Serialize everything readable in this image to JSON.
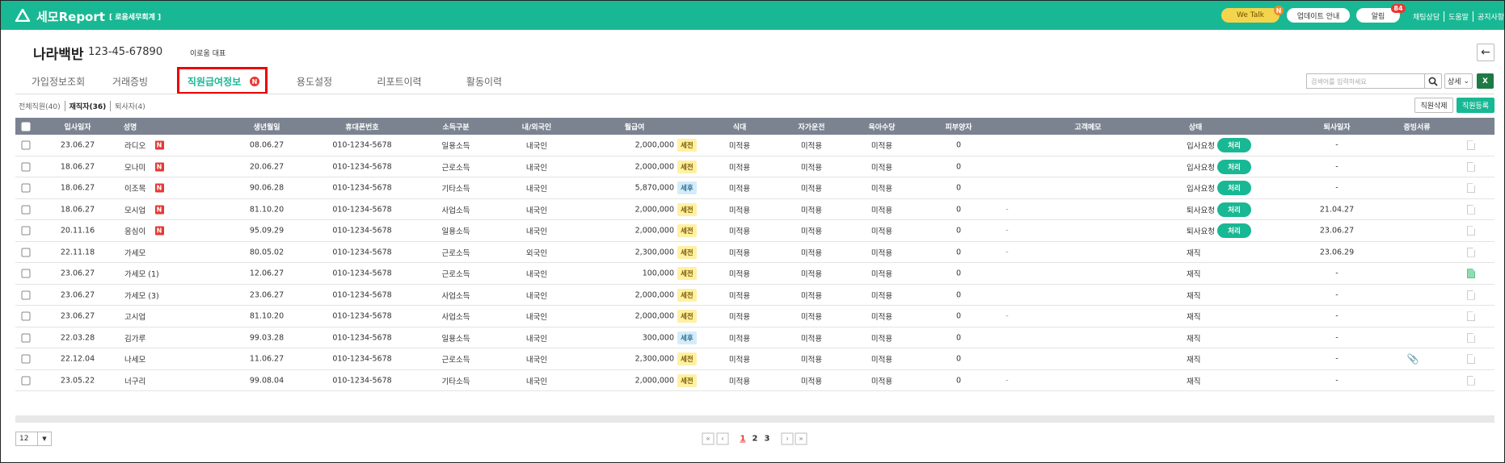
{
  "header": {
    "logo": "세모Report",
    "office": "[ 로움세무회계 ]",
    "wetalk": "We Talk",
    "wetalk_badge": "N",
    "update": "업데이트 안내",
    "alarm": "알림",
    "alarm_badge": "84",
    "links": [
      "채팅상담",
      "도움말",
      "공지사항"
    ]
  },
  "company": {
    "name": "나라백반",
    "biz_no": "123-45-67890",
    "rep": "이로움 대표"
  },
  "tabs": {
    "items": [
      "가입정보조회",
      "거래증빙",
      "직원급여정보",
      "용도설정",
      "리포트이력",
      "활동이력"
    ],
    "active": 2,
    "active_badge": "N"
  },
  "search": {
    "placeholder": "검색어를 입력하세요",
    "detail": "상세"
  },
  "filters": {
    "items": [
      "전체직원(40)",
      "재직자(36)",
      "퇴사자(4)"
    ],
    "active": 1
  },
  "buttons": {
    "delete": "직원삭제",
    "add": "직원등록"
  },
  "table": {
    "columns": [
      "입사일자",
      "성명",
      "생년월일",
      "휴대폰번호",
      "소득구분",
      "내/외국인",
      "월급여",
      "식대",
      "자가운전",
      "육아수당",
      "피부양자",
      "고객메모",
      "상태",
      "퇴사일자",
      "증빙서류"
    ],
    "rows": [
      {
        "date": "23.06.27",
        "name": "라디오",
        "badge": "N",
        "birth": "08.06.27",
        "phone": "010-1234-5678",
        "income": "일용소득",
        "nation": "내국인",
        "salary": "2,000,000",
        "tax": "세전",
        "meal": "미적용",
        "car": "미적용",
        "child": "미적용",
        "dependents": 0,
        "status": "입사요청",
        "action": "처리",
        "leave": "-"
      },
      {
        "date": "18.06.27",
        "name": "모나미",
        "badge": "N",
        "birth": "20.06.27",
        "phone": "010-1234-5678",
        "income": "근로소득",
        "nation": "내국인",
        "salary": "2,000,000",
        "tax": "세전",
        "meal": "미적용",
        "car": "미적용",
        "child": "미적용",
        "dependents": 0,
        "status": "입사요청",
        "action": "처리",
        "leave": "-"
      },
      {
        "date": "18.06.27",
        "name": "이조목",
        "badge": "N",
        "birth": "90.06.28",
        "phone": "010-1234-5678",
        "income": "기타소득",
        "nation": "내국인",
        "salary": "5,870,000",
        "tax": "세후",
        "meal": "미적용",
        "car": "미적용",
        "child": "미적용",
        "dependents": 0,
        "status": "입사요청",
        "action": "처리",
        "leave": "-"
      },
      {
        "date": "18.06.27",
        "name": "모시업",
        "badge": "N",
        "birth": "81.10.20",
        "phone": "010-1234-5678",
        "income": "사업소득",
        "nation": "내국인",
        "salary": "2,000,000",
        "tax": "세전",
        "meal": "미적용",
        "car": "미적용",
        "child": "미적용",
        "dependents": 0,
        "memo": "-",
        "status": "퇴사요청",
        "action": "처리",
        "leave": "21.04.27"
      },
      {
        "date": "20.11.16",
        "name": "응심이",
        "badge": "N",
        "birth": "95.09.29",
        "phone": "010-1234-5678",
        "income": "일용소득",
        "nation": "내국인",
        "salary": "2,000,000",
        "tax": "세전",
        "meal": "미적용",
        "car": "미적용",
        "child": "미적용",
        "dependents": 0,
        "memo": "-",
        "status": "퇴사요청",
        "action": "처리",
        "leave": "23.06.27"
      },
      {
        "date": "22.11.18",
        "name": "가세모",
        "birth": "80.05.02",
        "phone": "010-1234-5678",
        "income": "근로소득",
        "nation": "외국인",
        "salary": "2,300,000",
        "tax": "세전",
        "meal": "미적용",
        "car": "미적용",
        "child": "미적용",
        "dependents": 0,
        "memo": "-",
        "status": "재직",
        "leave": "23.06.29"
      },
      {
        "date": "23.06.27",
        "name": "가세모 (1)",
        "birth": "12.06.27",
        "phone": "010-1234-5678",
        "income": "근로소득",
        "nation": "내국인",
        "salary": "100,000",
        "tax": "세전",
        "meal": "미적용",
        "car": "미적용",
        "child": "미적용",
        "dependents": 0,
        "status": "재직",
        "leave": "-",
        "doc_uploaded": true
      },
      {
        "date": "23.06.27",
        "name": "가세모 (3)",
        "birth": "23.06.27",
        "phone": "010-1234-5678",
        "income": "사업소득",
        "nation": "내국인",
        "salary": "2,000,000",
        "tax": "세전",
        "meal": "미적용",
        "car": "미적용",
        "child": "미적용",
        "dependents": 0,
        "status": "재직",
        "leave": "-"
      },
      {
        "date": "23.06.27",
        "name": "고시업",
        "birth": "81.10.20",
        "phone": "010-1234-5678",
        "income": "사업소득",
        "nation": "내국인",
        "salary": "2,000,000",
        "tax": "세전",
        "meal": "미적용",
        "car": "미적용",
        "child": "미적용",
        "dependents": 0,
        "memo": "-",
        "status": "재직",
        "leave": "-"
      },
      {
        "date": "22.03.28",
        "name": "김가루",
        "birth": "99.03.28",
        "phone": "010-1234-5678",
        "income": "일용소득",
        "nation": "내국인",
        "salary": "300,000",
        "tax": "세후",
        "meal": "미적용",
        "car": "미적용",
        "child": "미적용",
        "dependents": 0,
        "status": "재직",
        "leave": "-"
      },
      {
        "date": "22.12.04",
        "name": "나세모",
        "birth": "11.06.27",
        "phone": "010-1234-5678",
        "income": "근로소득",
        "nation": "내국인",
        "salary": "2,300,000",
        "tax": "세전",
        "meal": "미적용",
        "car": "미적용",
        "child": "미적용",
        "dependents": 0,
        "status": "재직",
        "leave": "-",
        "attachment": true
      },
      {
        "date": "23.05.22",
        "name": "너구리",
        "birth": "99.08.04",
        "phone": "010-1234-5678",
        "income": "기타소득",
        "nation": "내국인",
        "salary": "2,000,000",
        "tax": "세전",
        "meal": "미적용",
        "car": "미적용",
        "child": "미적용",
        "dependents": 0,
        "memo": "-",
        "status": "재직",
        "leave": "-"
      }
    ]
  },
  "pagination": {
    "page_size": "12",
    "pages": [
      "1",
      "2",
      "3"
    ],
    "current": 0
  }
}
